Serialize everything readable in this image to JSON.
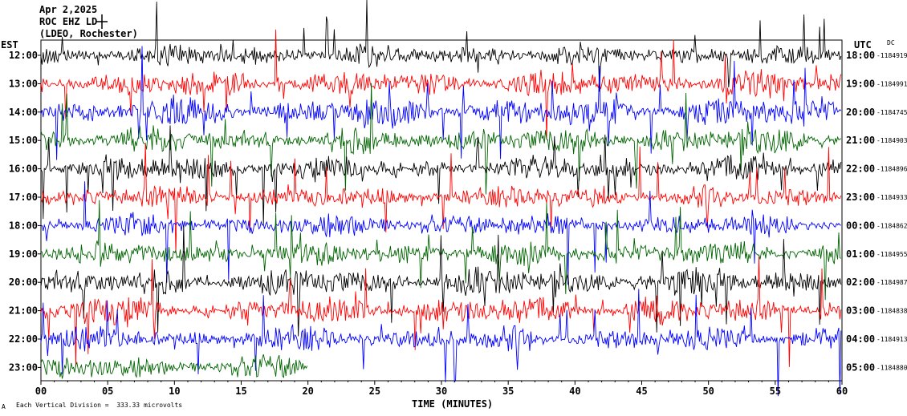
{
  "header": {
    "date": "Apr 2,2025",
    "station": "ROC EHZ LD",
    "location": "(LDEO, Rochester)"
  },
  "left_tz": "EST",
  "right_tz": "UTC",
  "dc_label": "DC",
  "xlabel": "TIME (MINUTES)",
  "footer": "Each Vertical Division =  333.33 microvolts",
  "footer_mark": "A",
  "colors": {
    "background": "#ffffff",
    "trace_cycle": [
      "#000000",
      "#ff0000",
      "#0000ff",
      "#006400"
    ]
  },
  "chart_data": {
    "type": "line",
    "x_range": [
      0,
      60
    ],
    "x_ticks": [
      "00",
      "05",
      "10",
      "15",
      "20",
      "25",
      "30",
      "35",
      "40",
      "45",
      "50",
      "55",
      "60"
    ],
    "rows": [
      {
        "est": "12:00",
        "utc": "18:00",
        "dc": "-1184919",
        "color": "#000000",
        "level": 0.35,
        "minutes": 60
      },
      {
        "est": "13:00",
        "utc": "19:00",
        "dc": "-1184991",
        "color": "#ff0000",
        "level": 0.7,
        "minutes": 60
      },
      {
        "est": "14:00",
        "utc": "20:00",
        "dc": "-1184745",
        "color": "#0000ff",
        "level": 0.9,
        "minutes": 60
      },
      {
        "est": "15:00",
        "utc": "21:00",
        "dc": "-1184903",
        "color": "#006400",
        "level": 0.65,
        "minutes": 60
      },
      {
        "est": "16:00",
        "utc": "22:00",
        "dc": "-1184896",
        "color": "#000000",
        "level": 0.6,
        "minutes": 60
      },
      {
        "est": "17:00",
        "utc": "23:00",
        "dc": "-1184933",
        "color": "#ff0000",
        "level": 0.45,
        "minutes": 60
      },
      {
        "est": "18:00",
        "utc": "00:00",
        "dc": "-1184862",
        "color": "#0000ff",
        "level": 0.45,
        "minutes": 60
      },
      {
        "est": "19:00",
        "utc": "01:00",
        "dc": "-1184955",
        "color": "#006400",
        "level": 0.55,
        "minutes": 60
      },
      {
        "est": "20:00",
        "utc": "02:00",
        "dc": "-1184987",
        "color": "#000000",
        "level": 0.75,
        "minutes": 60
      },
      {
        "est": "21:00",
        "utc": "03:00",
        "dc": "-1184838",
        "color": "#ff0000",
        "level": 0.8,
        "minutes": 60
      },
      {
        "est": "22:00",
        "utc": "04:00",
        "dc": "-1184913",
        "color": "#0000ff",
        "level": 0.6,
        "minutes": 60
      },
      {
        "est": "23:00",
        "utc": "05:00",
        "dc": "-1184880",
        "color": "#006400",
        "level": 0.45,
        "minutes": 20
      }
    ]
  }
}
